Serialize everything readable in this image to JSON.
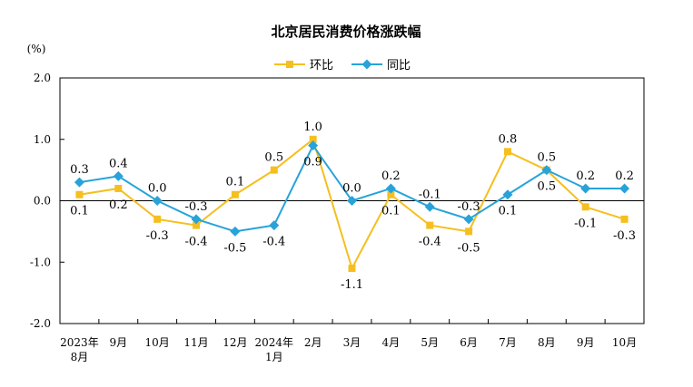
{
  "chart_data": {
    "type": "line",
    "title": "北京居民消费价格涨跌幅",
    "ylabel": "(%)",
    "xlabel": "",
    "ylim": [
      -2.0,
      2.0
    ],
    "yticks": [
      "2.0",
      "1.0",
      "0.0",
      "-1.0",
      "-2.0"
    ],
    "categories": [
      [
        "2023年",
        "8月"
      ],
      [
        "9月"
      ],
      [
        "10月"
      ],
      [
        "11月"
      ],
      [
        "12月"
      ],
      [
        "2024年",
        "1月"
      ],
      [
        "2月"
      ],
      [
        "3月"
      ],
      [
        "4月"
      ],
      [
        "5月"
      ],
      [
        "6月"
      ],
      [
        "7月"
      ],
      [
        "8月"
      ],
      [
        "9月"
      ],
      [
        "10月"
      ]
    ],
    "legend_position": "top-center",
    "grid": false,
    "series": [
      {
        "name": "环比",
        "color": "#f5bf1e",
        "marker": "square",
        "values": [
          0.1,
          0.2,
          -0.3,
          -0.4,
          0.1,
          0.5,
          1.0,
          -1.1,
          0.1,
          -0.4,
          -0.5,
          0.8,
          0.5,
          -0.1,
          -0.3
        ],
        "labels": [
          "0.1",
          "0.2",
          "-0.3",
          "-0.4",
          "0.1",
          "0.5",
          "1.0",
          "-1.1",
          "0.1",
          "-0.4",
          "-0.5",
          "0.8",
          "0.5",
          "-0.1",
          "-0.3"
        ]
      },
      {
        "name": "同比",
        "color": "#27a3d9",
        "marker": "diamond",
        "values": [
          0.3,
          0.4,
          0.0,
          -0.3,
          -0.5,
          -0.4,
          0.9,
          0.0,
          0.2,
          -0.1,
          -0.3,
          0.1,
          0.5,
          0.2,
          0.2
        ],
        "labels": [
          "0.3",
          "0.4",
          "0.0",
          "-0.3",
          "-0.5",
          "-0.4",
          "0.9",
          "0.0",
          "0.2",
          "-0.1",
          "-0.3",
          "0.1",
          "0.5",
          "0.2",
          "0.2"
        ]
      }
    ]
  }
}
